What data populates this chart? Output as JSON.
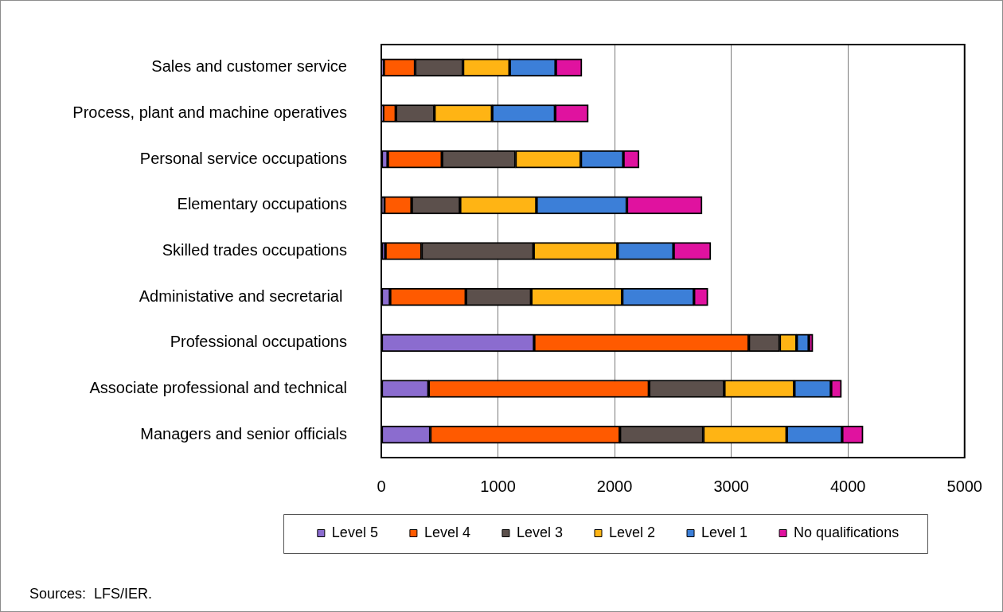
{
  "chart_data": {
    "type": "bar",
    "orientation": "horizontal",
    "stacked": true,
    "categories": [
      "Sales and customer service",
      "Process, plant and machine operatives",
      "Personal service occupations",
      "Elementary occupations",
      "Skilled trades occupations",
      "Administative and secretarial ",
      "Professional occupations",
      "Associate professional and technical",
      "Managers and senior officials"
    ],
    "series": [
      {
        "name": "Level 5",
        "color": "#8b6ccf",
        "values": [
          20,
          15,
          55,
          25,
          35,
          75,
          1310,
          405,
          420
        ]
      },
      {
        "name": "Level 4",
        "color": "#ff5a00",
        "values": [
          270,
          110,
          465,
          235,
          310,
          650,
          1840,
          1890,
          1625
        ]
      },
      {
        "name": "Level 3",
        "color": "#5c504c",
        "values": [
          410,
          330,
          630,
          415,
          960,
          560,
          265,
          645,
          715
        ]
      },
      {
        "name": "Level 2",
        "color": "#ffb414",
        "values": [
          400,
          495,
          560,
          655,
          720,
          780,
          145,
          600,
          715
        ]
      },
      {
        "name": "Level 1",
        "color": "#3c7fd8",
        "values": [
          395,
          540,
          365,
          775,
          480,
          615,
          105,
          315,
          475
        ]
      },
      {
        "name": "No qualifications",
        "color": "#e0129f",
        "values": [
          225,
          285,
          135,
          645,
          320,
          120,
          35,
          90,
          180
        ]
      }
    ],
    "xlim": [
      0,
      5000
    ],
    "xticks": [
      0,
      1000,
      2000,
      3000,
      4000,
      5000
    ],
    "grid": "x",
    "legend": "bottom",
    "annotations": [
      "Sources:  LFS/IER."
    ]
  }
}
